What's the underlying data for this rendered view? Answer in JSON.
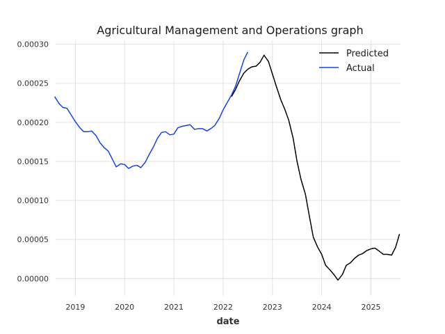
{
  "chart_data": {
    "type": "line",
    "title": "Agricultural Management and Operations graph",
    "xlabel": "date",
    "ylabel": "",
    "xlim": [
      2018.6,
      2025.6
    ],
    "ylim": [
      -2.2e-05,
      0.000305
    ],
    "xticks": [
      {
        "value": 2019,
        "label": "2019"
      },
      {
        "value": 2020,
        "label": "2020"
      },
      {
        "value": 2021,
        "label": "2021"
      },
      {
        "value": 2022,
        "label": "2022"
      },
      {
        "value": 2023,
        "label": "2023"
      },
      {
        "value": 2024,
        "label": "2024"
      },
      {
        "value": 2025,
        "label": "2025"
      }
    ],
    "yticks": [
      {
        "value": 0.0,
        "label": "0.00000"
      },
      {
        "value": 5e-05,
        "label": "0.00005"
      },
      {
        "value": 0.0001,
        "label": "0.00010"
      },
      {
        "value": 0.00015,
        "label": "0.00015"
      },
      {
        "value": 0.0002,
        "label": "0.00020"
      },
      {
        "value": 0.00025,
        "label": "0.00025"
      },
      {
        "value": 0.0003,
        "label": "0.00030"
      }
    ],
    "grid": true,
    "legend_position": "top-right",
    "series": [
      {
        "name": "Predicted",
        "color": "#000000",
        "points": [
          [
            2022.17,
            0.000233
          ],
          [
            2022.25,
            0.000242
          ],
          [
            2022.33,
            0.000253
          ],
          [
            2022.42,
            0.000263
          ],
          [
            2022.5,
            0.000268
          ],
          [
            2022.58,
            0.000271
          ],
          [
            2022.67,
            0.000272
          ],
          [
            2022.75,
            0.000277
          ],
          [
            2022.83,
            0.000286
          ],
          [
            2022.92,
            0.000278
          ],
          [
            2023.0,
            0.000262
          ],
          [
            2023.08,
            0.000246
          ],
          [
            2023.17,
            0.000229
          ],
          [
            2023.25,
            0.000217
          ],
          [
            2023.33,
            0.000203
          ],
          [
            2023.42,
            0.00018
          ],
          [
            2023.5,
            0.00015
          ],
          [
            2023.58,
            0.000127
          ],
          [
            2023.67,
            0.000108
          ],
          [
            2023.75,
            8e-05
          ],
          [
            2023.83,
            5.3e-05
          ],
          [
            2023.92,
            4e-05
          ],
          [
            2024.0,
            3.1e-05
          ],
          [
            2024.08,
            1.7e-05
          ],
          [
            2024.17,
            1.1e-05
          ],
          [
            2024.25,
            5e-06
          ],
          [
            2024.33,
            -2e-06
          ],
          [
            2024.42,
            5e-06
          ],
          [
            2024.5,
            1.7e-05
          ],
          [
            2024.58,
            2e-05
          ],
          [
            2024.67,
            2.6e-05
          ],
          [
            2024.75,
            3e-05
          ],
          [
            2024.83,
            3.2e-05
          ],
          [
            2024.92,
            3.6e-05
          ],
          [
            2025.0,
            3.8e-05
          ],
          [
            2025.08,
            3.9e-05
          ],
          [
            2025.17,
            3.5e-05
          ],
          [
            2025.25,
            3.1e-05
          ],
          [
            2025.33,
            3.1e-05
          ],
          [
            2025.42,
            3e-05
          ],
          [
            2025.5,
            4e-05
          ],
          [
            2025.58,
            5.7e-05
          ]
        ]
      },
      {
        "name": "Actual",
        "color": "#1442e6",
        "points": [
          [
            2018.58,
            0.000233
          ],
          [
            2018.67,
            0.000224
          ],
          [
            2018.75,
            0.000219
          ],
          [
            2018.83,
            0.000218
          ],
          [
            2018.92,
            0.000209
          ],
          [
            2019.0,
            0.000201
          ],
          [
            2019.08,
            0.000194
          ],
          [
            2019.17,
            0.000188
          ],
          [
            2019.25,
            0.000188
          ],
          [
            2019.33,
            0.000189
          ],
          [
            2019.42,
            0.000183
          ],
          [
            2019.5,
            0.000174
          ],
          [
            2019.58,
            0.000168
          ],
          [
            2019.67,
            0.000163
          ],
          [
            2019.75,
            0.000153
          ],
          [
            2019.83,
            0.000143
          ],
          [
            2019.92,
            0.000147
          ],
          [
            2020.0,
            0.000146
          ],
          [
            2020.08,
            0.000141
          ],
          [
            2020.17,
            0.000144
          ],
          [
            2020.25,
            0.000145
          ],
          [
            2020.33,
            0.000142
          ],
          [
            2020.42,
            0.000149
          ],
          [
            2020.5,
            0.000159
          ],
          [
            2020.58,
            0.000168
          ],
          [
            2020.67,
            0.00018
          ],
          [
            2020.75,
            0.000187
          ],
          [
            2020.83,
            0.000188
          ],
          [
            2020.92,
            0.000184
          ],
          [
            2021.0,
            0.000185
          ],
          [
            2021.08,
            0.000193
          ],
          [
            2021.17,
            0.000195
          ],
          [
            2021.25,
            0.000196
          ],
          [
            2021.33,
            0.000197
          ],
          [
            2021.42,
            0.000191
          ],
          [
            2021.5,
            0.000192
          ],
          [
            2021.58,
            0.000192
          ],
          [
            2021.67,
            0.000189
          ],
          [
            2021.75,
            0.000192
          ],
          [
            2021.83,
            0.000196
          ],
          [
            2021.92,
            0.000205
          ],
          [
            2022.0,
            0.000216
          ],
          [
            2022.08,
            0.000225
          ],
          [
            2022.17,
            0.000235
          ],
          [
            2022.25,
            0.000246
          ],
          [
            2022.33,
            0.000262
          ],
          [
            2022.42,
            0.00028
          ],
          [
            2022.5,
            0.00029
          ]
        ]
      }
    ]
  }
}
